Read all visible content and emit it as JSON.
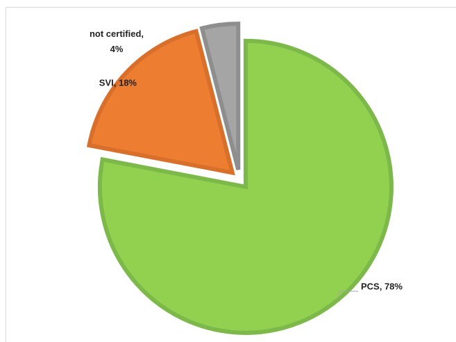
{
  "chart_data": {
    "type": "pie",
    "values": [
      78,
      18,
      4
    ],
    "value_labels": [
      "PCS, 78%",
      "SVI, 18%",
      "not certified, 4%"
    ],
    "colors": [
      "#92d050",
      "#ed7d31",
      "#a5a5a5"
    ],
    "stroke_colors": [
      "#7cb84a",
      "#d86f2a",
      "#8e8e8e"
    ],
    "exploded": true
  }
}
